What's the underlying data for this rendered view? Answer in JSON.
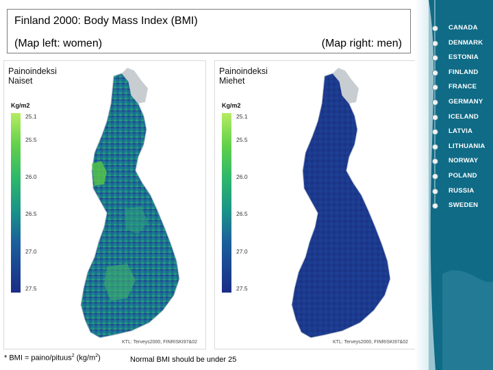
{
  "title": "Finland 2000: Body Mass Index (BMI)",
  "subtitle_left": "(Map left: women)",
  "subtitle_right": "(Map right: men)",
  "maps": [
    {
      "panel_title_line1": "Painoindeksi",
      "panel_title_line2": "Naiset",
      "unit": "Kg/m2",
      "scale_ticks": [
        "25.1",
        "25.5",
        "26.0",
        "26.5",
        "27.0",
        "27.5"
      ],
      "credit": "KTL: Terveys2000, FINRISKI97&02",
      "shading": "mixed green and blue"
    },
    {
      "panel_title_line1": "Painoindeksi",
      "panel_title_line2": "Miehet",
      "unit": "Kg/m2",
      "scale_ticks": [
        "25.1",
        "25.5",
        "26.0",
        "26.5",
        "27.0",
        "27.5"
      ],
      "credit": "KTL: Terveys2000, FINRISKI97&02",
      "shading": "dark blue"
    }
  ],
  "footnote_formula_prefix": "* BMI = paino/pituus",
  "footnote_formula_exp": "2",
  "footnote_formula_unit": "(kg/m",
  "footnote_formula_unit_exp": "2",
  "footnote_formula_close": ")",
  "footnote_note": "Normal BMI should be under 25",
  "sidebar": {
    "countries": [
      "CANADA",
      "DENMARK",
      "ESTONIA",
      "FINLAND",
      "FRANCE",
      "GERMANY",
      "ICELAND",
      "LATVIA",
      "LITHUANIA",
      "NORWAY",
      "POLAND",
      "RUSSIA",
      "SWEDEN"
    ],
    "colors": {
      "background": "#0f6b86",
      "text": "#ffffff"
    }
  },
  "colors": {
    "scale_high": "#b5ec62",
    "scale_low": "#1a2c86",
    "men_map": "#1d3a8f"
  }
}
